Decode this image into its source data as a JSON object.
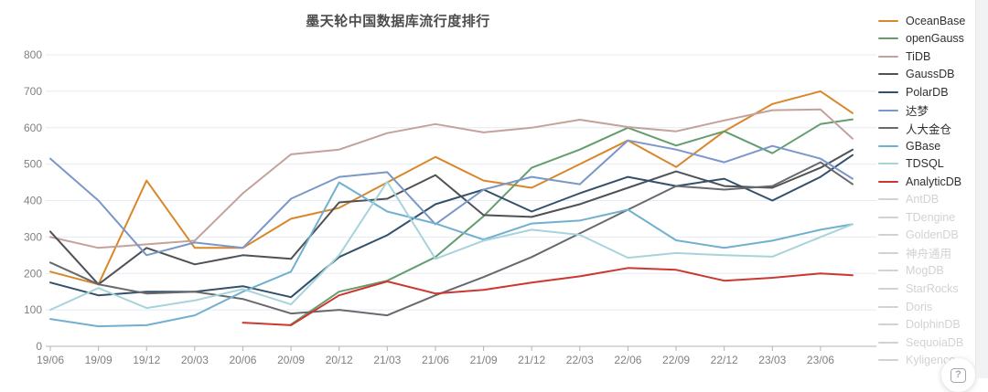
{
  "header": {
    "title": "墨天轮中国数据库流行度排行"
  },
  "ui": {
    "help_glyph": "?"
  },
  "chart_data": {
    "type": "line",
    "title": "墨天轮中国数据库流行度排行",
    "xlabel": "",
    "ylabel": "",
    "ylim": [
      0,
      800
    ],
    "grid": true,
    "legend_position": "right",
    "x_labels": [
      "19/06",
      "19/09",
      "19/12",
      "20/03",
      "20/06",
      "20/09",
      "20/12",
      "21/03",
      "21/06",
      "21/09",
      "21/12",
      "22/03",
      "22/06",
      "22/09",
      "22/12",
      "23/03",
      "23/06"
    ],
    "x_months": [
      0,
      3,
      6,
      9,
      12,
      15,
      18,
      21,
      24,
      27,
      30,
      33,
      36,
      39,
      42,
      45,
      48,
      50
    ],
    "y_ticks": [
      0,
      100,
      200,
      300,
      400,
      500,
      600,
      700,
      800
    ],
    "inactive_color": "#d2d2d2",
    "series": [
      {
        "name": "OceanBase",
        "color": "#d9872b",
        "active": true,
        "values": [
          205,
          170,
          455,
          270,
          270,
          350,
          380,
          450,
          520,
          455,
          435,
          500,
          565,
          492,
          590,
          665,
          700,
          640
        ]
      },
      {
        "name": "openGauss",
        "color": "#649d6f",
        "active": true,
        "values": [
          null,
          null,
          null,
          null,
          null,
          60,
          150,
          180,
          245,
          357,
          490,
          540,
          600,
          551,
          590,
          530,
          610,
          623
        ]
      },
      {
        "name": "TiDB",
        "color": "#c4a29c",
        "active": true,
        "values": [
          300,
          270,
          280,
          290,
          420,
          527,
          540,
          585,
          610,
          587,
          600,
          622,
          602,
          590,
          620,
          648,
          650,
          570
        ]
      },
      {
        "name": "GaussDB",
        "color": "#4e5156",
        "active": true,
        "values": [
          315,
          170,
          270,
          225,
          250,
          240,
          395,
          405,
          470,
          360,
          355,
          390,
          435,
          480,
          440,
          435,
          490,
          540
        ]
      },
      {
        "name": "PolarDB",
        "color": "#33506b",
        "active": true,
        "values": [
          175,
          140,
          150,
          150,
          165,
          135,
          245,
          305,
          390,
          430,
          370,
          420,
          465,
          440,
          460,
          400,
          465,
          525
        ]
      },
      {
        "name": "达梦",
        "color": "#7b97c9",
        "active": true,
        "values": [
          515,
          400,
          250,
          285,
          270,
          405,
          465,
          478,
          335,
          430,
          465,
          445,
          565,
          540,
          505,
          550,
          515,
          460
        ]
      },
      {
        "name": "人大金仓",
        "color": "#68696c",
        "active": true,
        "values": [
          230,
          170,
          145,
          150,
          130,
          90,
          100,
          85,
          140,
          190,
          245,
          310,
          375,
          440,
          430,
          440,
          505,
          445
        ]
      },
      {
        "name": "GBase",
        "color": "#72b0cf",
        "active": true,
        "values": [
          75,
          55,
          58,
          85,
          150,
          205,
          450,
          370,
          337,
          293,
          337,
          345,
          375,
          291,
          270,
          290,
          320,
          335
        ]
      },
      {
        "name": "TDSQL",
        "color": "#a6d4da",
        "active": true,
        "values": [
          100,
          160,
          105,
          126,
          157,
          115,
          250,
          452,
          240,
          290,
          320,
          306,
          243,
          256,
          250,
          246,
          300,
          335
        ]
      },
      {
        "name": "AnalyticDB",
        "color": "#cc382f",
        "active": true,
        "values": [
          null,
          null,
          null,
          null,
          65,
          58,
          140,
          178,
          145,
          155,
          175,
          192,
          215,
          210,
          180,
          188,
          200,
          195
        ]
      },
      {
        "name": "AntDB",
        "active": false,
        "values": null
      },
      {
        "name": "TDengine",
        "active": false,
        "values": null
      },
      {
        "name": "GoldenDB",
        "active": false,
        "values": null
      },
      {
        "name": "神舟通用",
        "active": false,
        "values": null
      },
      {
        "name": "MogDB",
        "active": false,
        "values": null
      },
      {
        "name": "StarRocks",
        "active": false,
        "values": null
      },
      {
        "name": "Doris",
        "active": false,
        "values": null
      },
      {
        "name": "DolphinDB",
        "active": false,
        "values": null
      },
      {
        "name": "SequoiaDB",
        "active": false,
        "values": null
      },
      {
        "name": "Kyligence",
        "active": false,
        "values": null
      }
    ]
  }
}
